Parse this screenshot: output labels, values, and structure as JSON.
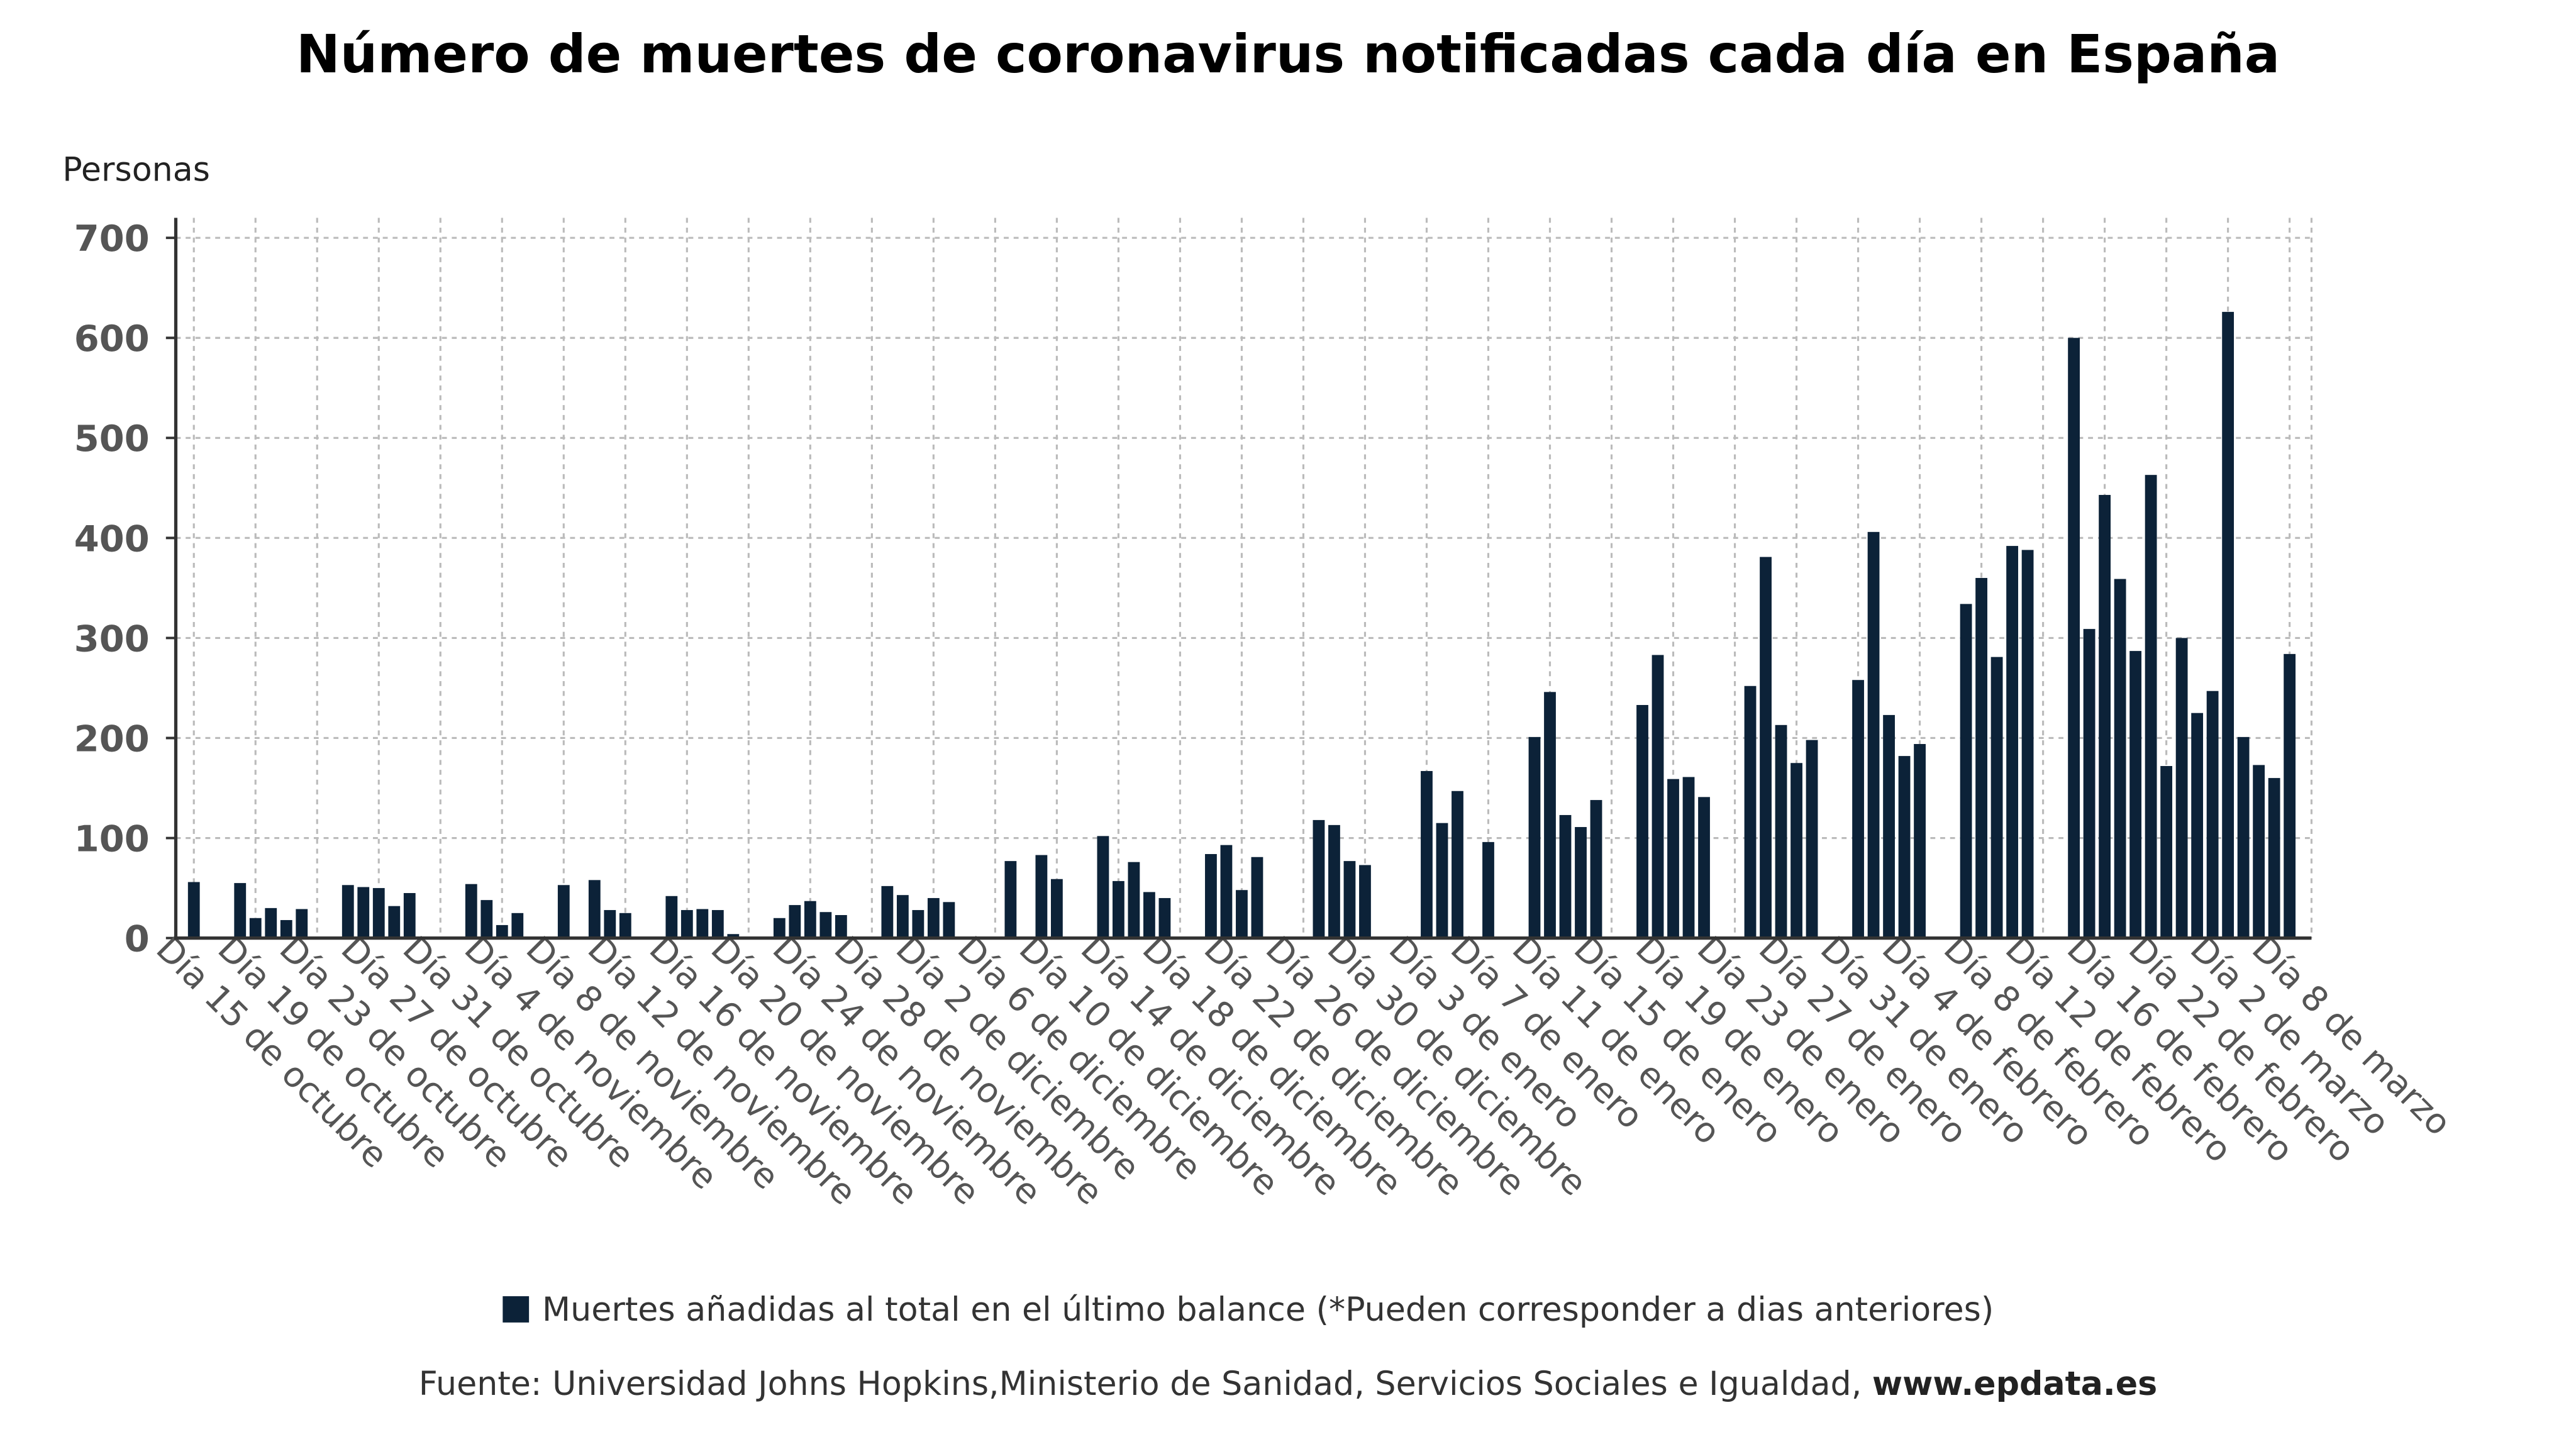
{
  "chart_data": {
    "type": "bar",
    "title": "Número de muertes de coronavirus notificadas cada día en España",
    "y_label": "Personas",
    "legend": "Muertes añadidas al total en el último balance (*Pueden corresponder a dias anteriores)",
    "source": "Fuente: Universidad Johns Hopkins,Ministerio de Sanidad, Servicios Sociales e Igualdad, ",
    "source_link": "www.epdata.es",
    "color": "#0c2238",
    "grid": true,
    "ylim": [
      0,
      720
    ],
    "yticks": [
      0,
      100,
      200,
      300,
      400,
      500,
      600,
      700
    ],
    "categories": [
      "Día 15 de octubre",
      null,
      null,
      null,
      "Día 19 de octubre",
      null,
      null,
      null,
      "Día 23 de octubre",
      null,
      null,
      null,
      "Día 27 de octubre",
      null,
      null,
      null,
      "Día 31 de octubre",
      null,
      null,
      null,
      "Día 4 de noviembre",
      null,
      null,
      null,
      "Día 8 de noviembre",
      null,
      null,
      null,
      "Día 12 de noviembre",
      null,
      null,
      null,
      "Día 16 de noviembre",
      null,
      null,
      null,
      "Día 20 de noviembre",
      null,
      null,
      null,
      "Día 24 de noviembre",
      null,
      null,
      null,
      "Día 28 de noviembre",
      null,
      null,
      null,
      "Día 2 de diciembre",
      null,
      null,
      null,
      "Día 6 de diciembre",
      null,
      null,
      null,
      "Día 10 de diciembre",
      null,
      null,
      null,
      "Día 14 de diciembre",
      null,
      null,
      null,
      "Día 18 de diciembre",
      null,
      null,
      null,
      "Día 22 de diciembre",
      null,
      null,
      null,
      "Día 26 de diciembre",
      null,
      null,
      null,
      "Día 30 de diciembre",
      null,
      null,
      null,
      "Día 3 de enero",
      null,
      null,
      null,
      "Día 7 de enero",
      null,
      null,
      null,
      "Día 11 de enero",
      null,
      null,
      null,
      "Día 15 de enero",
      null,
      null,
      null,
      "Día 19 de enero",
      null,
      null,
      null,
      "Día 23 de enero",
      null,
      null,
      null,
      "Día 27 de enero",
      null,
      null,
      null,
      "Día 31 de enero",
      null,
      null,
      null,
      "Día 4 de febrero",
      null,
      null,
      null,
      "Día 8 de febrero",
      null,
      null,
      null,
      "Día 12 de febrero",
      null,
      null,
      null,
      "Día 16 de febrero",
      null,
      null,
      null,
      "Día 22 de febrero",
      null,
      null,
      null,
      "Día 2 de marzo",
      null,
      null,
      null,
      "Día 8 de marzo"
    ],
    "values": [
      56,
      null,
      null,
      55,
      20,
      30,
      18,
      29,
      null,
      null,
      53,
      51,
      50,
      32,
      45,
      null,
      null,
      null,
      54,
      38,
      13,
      25,
      null,
      null,
      53,
      null,
      58,
      28,
      25,
      null,
      null,
      42,
      28,
      29,
      28,
      4,
      null,
      null,
      20,
      33,
      37,
      26,
      23,
      null,
      null,
      52,
      43,
      28,
      40,
      36,
      null,
      null,
      null,
      77,
      null,
      83,
      59,
      null,
      null,
      102,
      57,
      76,
      46,
      40,
      null,
      null,
      84,
      93,
      48,
      81,
      null,
      null,
      null,
      118,
      113,
      77,
      73,
      null,
      null,
      null,
      167,
      115,
      147,
      null,
      96,
      null,
      null,
      201,
      246,
      123,
      111,
      138,
      null,
      null,
      233,
      283,
      159,
      161,
      141,
      null,
      null,
      252,
      381,
      213,
      175,
      198,
      null,
      null,
      258,
      406,
      223,
      182,
      194,
      null,
      null,
      334,
      360,
      281,
      392,
      388,
      null,
      null,
      600,
      309,
      443,
      359,
      287,
      463,
      172,
      300,
      225,
      247,
      626,
      201,
      173,
      160,
      284
    ]
  }
}
